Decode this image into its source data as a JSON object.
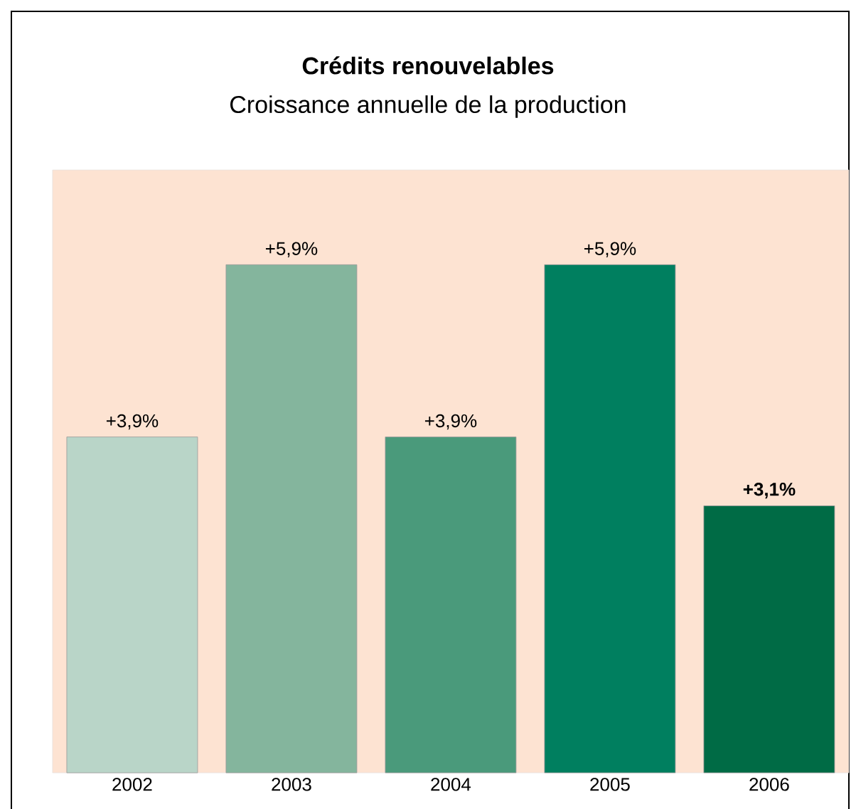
{
  "chart_data": {
    "type": "bar",
    "title": "Crédits renouvelables",
    "subtitle": "Croissance annuelle de la production",
    "categories": [
      "2002",
      "2003",
      "2004",
      "2005",
      "2006"
    ],
    "values": [
      3.9,
      5.9,
      3.9,
      5.9,
      3.1
    ],
    "value_labels": [
      "+3,9%",
      "+5,9%",
      "+3,9%",
      "+5,9%",
      "**+3,1%**"
    ],
    "colors": [
      "#b9d5c8",
      "#84b59d",
      "#4a9a7b",
      "#007f5f",
      "#006b45"
    ],
    "ylim": [
      0,
      7
    ]
  }
}
